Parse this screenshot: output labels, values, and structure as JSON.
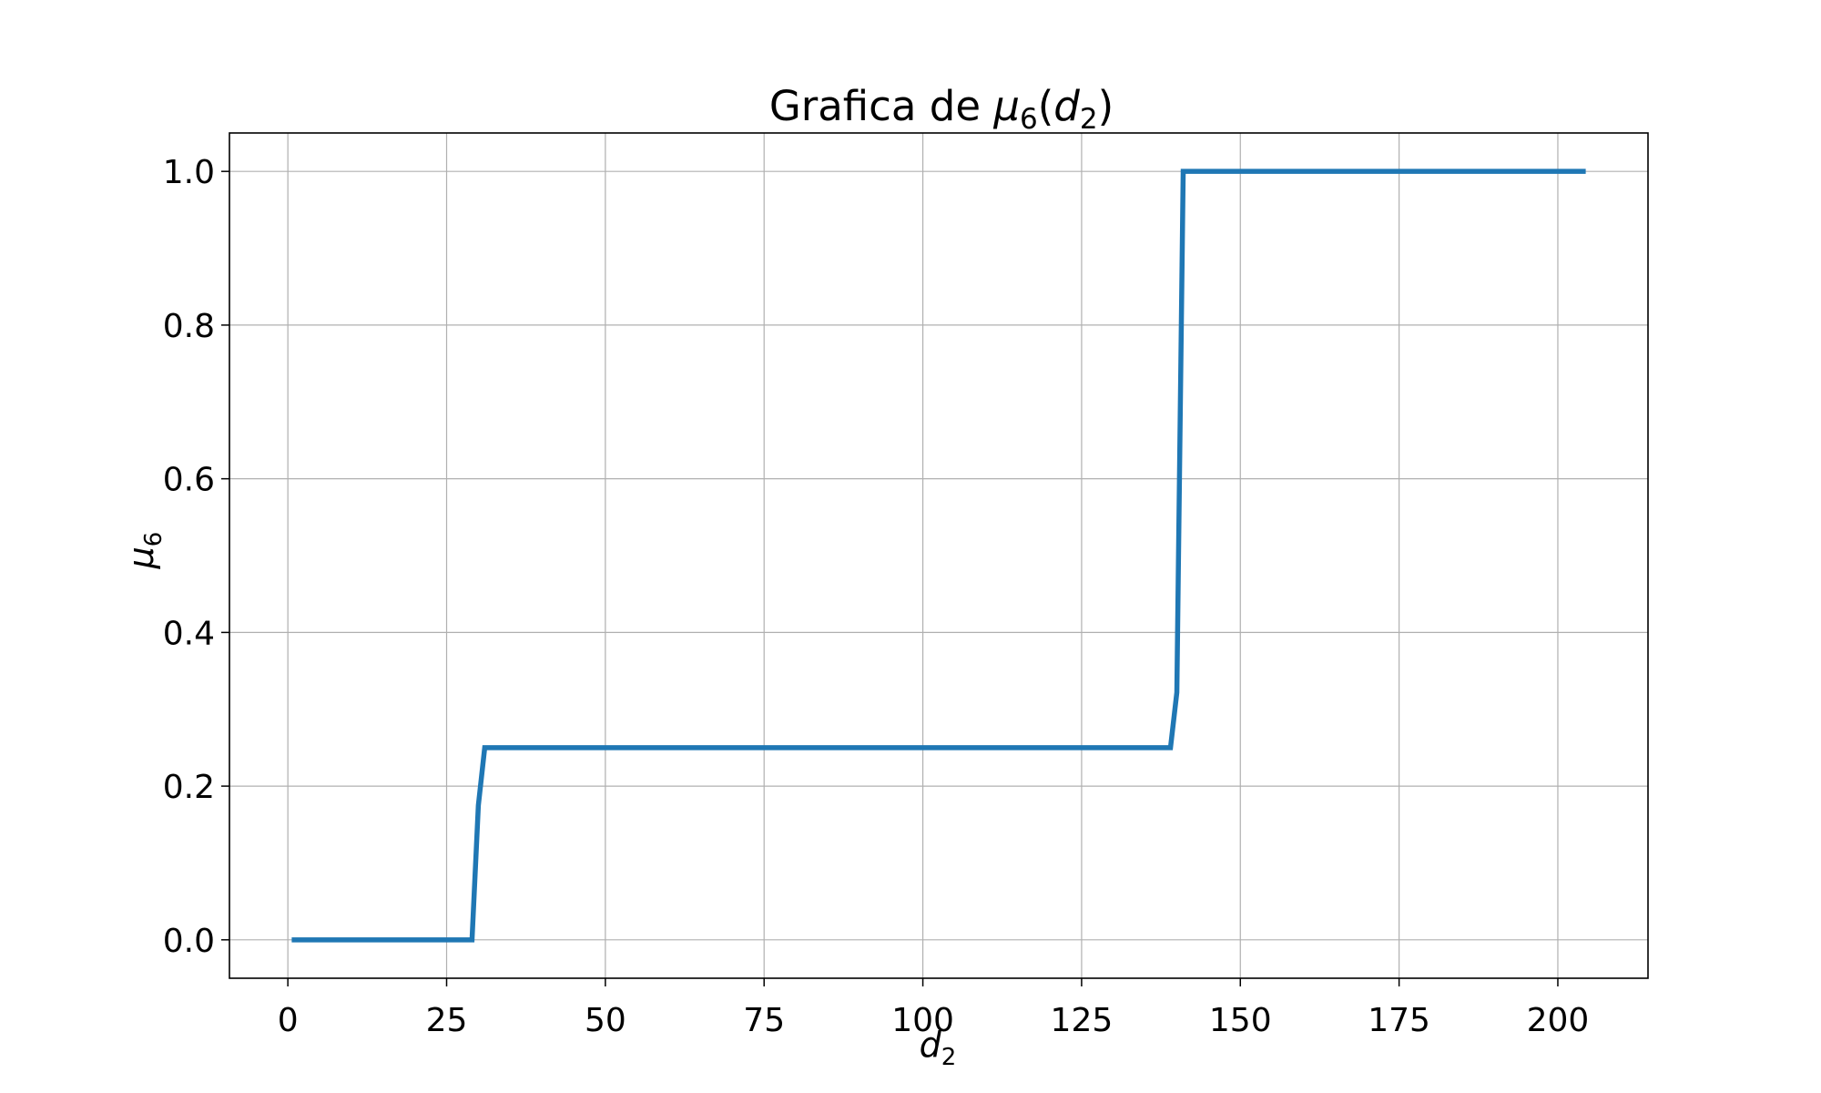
{
  "chart_data": {
    "type": "line",
    "title": {
      "prefix": "Grafica de ",
      "func": "μ",
      "func_sub": "6",
      "open": "(",
      "arg": "d",
      "arg_sub": "2",
      "close": ")"
    },
    "xlabel": {
      "base": "d",
      "sub": "2"
    },
    "ylabel": {
      "base": "μ",
      "sub": "6"
    },
    "xlim": [
      -9.2,
      214.2
    ],
    "ylim": [
      -0.05,
      1.05
    ],
    "xticks": [
      0,
      25,
      50,
      75,
      100,
      125,
      150,
      175,
      200
    ],
    "xtick_labels": [
      "0",
      "25",
      "50",
      "75",
      "100",
      "125",
      "150",
      "175",
      "200"
    ],
    "yticks": [
      0.0,
      0.2,
      0.4,
      0.6,
      0.8,
      1.0
    ],
    "ytick_labels": [
      "0.0",
      "0.2",
      "0.4",
      "0.6",
      "0.8",
      "1.0"
    ],
    "grid": true,
    "colors": {
      "series": "#1f77b4",
      "grid": "#b0b0b0",
      "frame": "#000000"
    },
    "series": [
      {
        "x": [
          1,
          29,
          30,
          31,
          139,
          140,
          141,
          204
        ],
        "y": [
          0.0,
          0.0,
          0.175,
          0.25,
          0.25,
          0.322,
          1.0,
          1.0
        ]
      }
    ]
  }
}
